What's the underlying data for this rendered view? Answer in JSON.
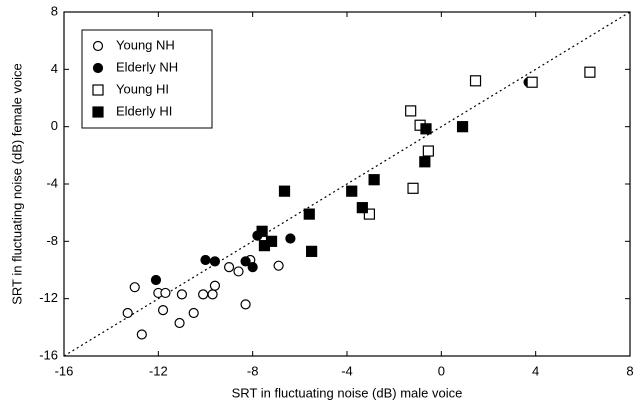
{
  "chart_data": {
    "type": "scatter",
    "xlabel": "SRT in fluctuating noise (dB) male voice",
    "ylabel": "SRT in fluctuating noise (dB) female voice",
    "xlim": [
      -16,
      8
    ],
    "ylim": [
      -16,
      8
    ],
    "xticks": [
      -16,
      -12,
      -8,
      -4,
      0,
      4,
      8
    ],
    "yticks": [
      -16,
      -12,
      -8,
      -4,
      0,
      4,
      8
    ],
    "legend": "upper left",
    "series": [
      {
        "name": "Young NH",
        "color": "#000000",
        "marker": "circle",
        "filled": false,
        "x": [
          -13,
          -13.3,
          -12.7,
          -12,
          -11.7,
          -11.8,
          -11,
          -11.1,
          -10.5,
          -10.1,
          -9.7,
          -9.6,
          -9,
          -8.6,
          -8.1,
          -8.3,
          -6.9
        ],
        "y": [
          -11.2,
          -13,
          -14.5,
          -11.6,
          -11.6,
          -12.8,
          -11.7,
          -13.7,
          -13,
          -11.7,
          -11.7,
          -11.1,
          -9.8,
          -10.1,
          -9.3,
          -12.4,
          -9.7
        ]
      },
      {
        "name": "Elderly NH",
        "color": "#000000",
        "marker": "circle",
        "filled": true,
        "x": [
          -12.1,
          -10,
          -9.6,
          -8.3,
          -8,
          -7.8,
          -6.4,
          3.7
        ],
        "y": [
          -10.7,
          -9.3,
          -9.4,
          -9.4,
          -9.8,
          -7.6,
          -7.8,
          3.1
        ]
      },
      {
        "name": "Young HI",
        "color": "#000000",
        "marker": "square",
        "filled": false,
        "x": [
          -1.3,
          -0.9,
          -0.55,
          -1.2,
          -3.05,
          1.45,
          3.85,
          6.3
        ],
        "y": [
          1.1,
          0.1,
          -1.7,
          -4.3,
          -6.1,
          3.2,
          3.1,
          3.8
        ]
      },
      {
        "name": "Elderly HI",
        "color": "#000000",
        "marker": "square",
        "filled": true,
        "x": [
          -6.65,
          -5.6,
          -5.5,
          -7.6,
          -7.5,
          -7.2,
          -3.8,
          -3.35,
          -2.85,
          -0.65,
          -0.7,
          0.9
        ],
        "y": [
          -4.5,
          -6.1,
          -8.7,
          -7.3,
          -8.3,
          -8,
          -4.5,
          -5.65,
          -3.7,
          -0.15,
          -2.45,
          0
        ]
      }
    ]
  }
}
